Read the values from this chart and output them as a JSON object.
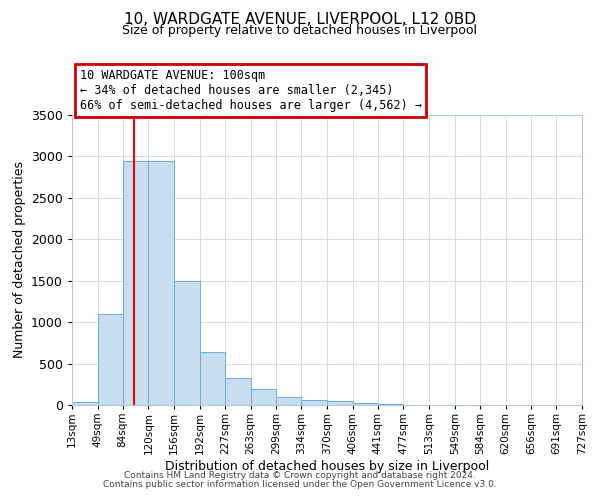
{
  "title": "10, WARDGATE AVENUE, LIVERPOOL, L12 0BD",
  "subtitle": "Size of property relative to detached houses in Liverpool",
  "xlabel": "Distribution of detached houses by size in Liverpool",
  "ylabel": "Number of detached properties",
  "bar_color": "#c8ddef",
  "bar_edge_color": "#6aaed6",
  "grid_color": "#d0dce8",
  "bg_color": "#ffffff",
  "annotation_box_color": "#cc0000",
  "annotation_line1": "10 WARDGATE AVENUE: 100sqm",
  "annotation_line2": "← 34% of detached houses are smaller (2,345)",
  "annotation_line3": "66% of semi-detached houses are larger (4,562) →",
  "red_line_x": 100,
  "bin_edges": [
    13,
    49,
    84,
    120,
    156,
    192,
    227,
    263,
    299,
    334,
    370,
    406,
    441,
    477,
    513,
    549,
    584,
    620,
    656,
    691,
    727
  ],
  "bin_counts": [
    40,
    1100,
    2940,
    2940,
    1500,
    640,
    325,
    195,
    100,
    60,
    45,
    25,
    10,
    3,
    1,
    1,
    0,
    0,
    0,
    0
  ],
  "ylim": [
    0,
    3500
  ],
  "yticks": [
    0,
    500,
    1000,
    1500,
    2000,
    2500,
    3000,
    3500
  ],
  "footer1": "Contains HM Land Registry data © Crown copyright and database right 2024.",
  "footer2": "Contains public sector information licensed under the Open Government Licence v3.0."
}
